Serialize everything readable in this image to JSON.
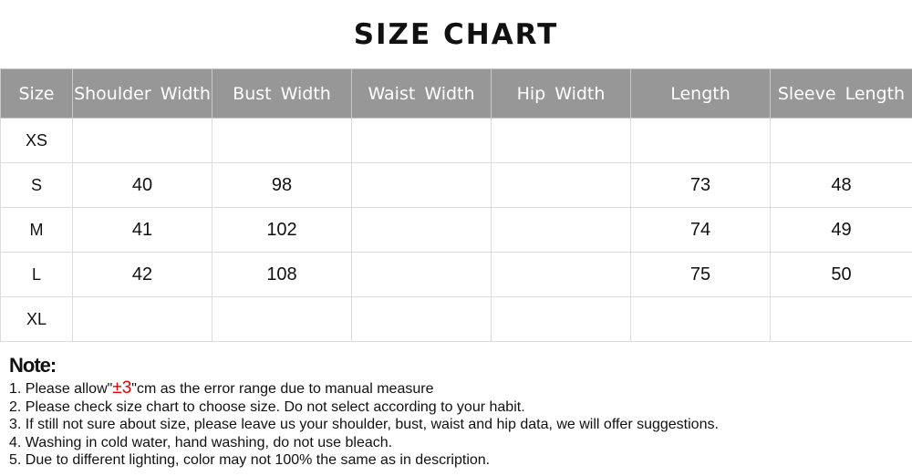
{
  "title": "SIZE CHART",
  "table": {
    "headers": [
      "Size",
      "Shoulder Width",
      "Bust Width",
      "Waist Width",
      "Hip Width",
      "Length",
      "Sleeve Length"
    ],
    "rows": [
      [
        "XS",
        "",
        "",
        "",
        "",
        "",
        ""
      ],
      [
        "S",
        "40",
        "98",
        "",
        "",
        "73",
        "48"
      ],
      [
        "M",
        "41",
        "102",
        "",
        "",
        "74",
        "49"
      ],
      [
        "L",
        "42",
        "108",
        "",
        "",
        "75",
        "50"
      ],
      [
        "XL",
        "",
        "",
        "",
        "",
        "",
        ""
      ]
    ]
  },
  "notes": {
    "title": "Note:",
    "item1_prefix": "1. Please allow\"",
    "item1_highlight": "±3",
    "item1_suffix": "\"cm as the error range due to manual measure",
    "items": [
      "2. Please check size chart to choose size. Do not select according to your habit.",
      "3. If still not sure about size, please leave us your shoulder, bust, waist and hip data, we will offer suggestions.",
      "4. Washing in cold water, hand washing, do not use bleach.",
      "5. Due to different lighting, color may not 100% the same as in description."
    ],
    "highlight_color": "#e00000"
  },
  "colors": {
    "header_bg": "#979797",
    "grid": "#dcdcdc"
  }
}
